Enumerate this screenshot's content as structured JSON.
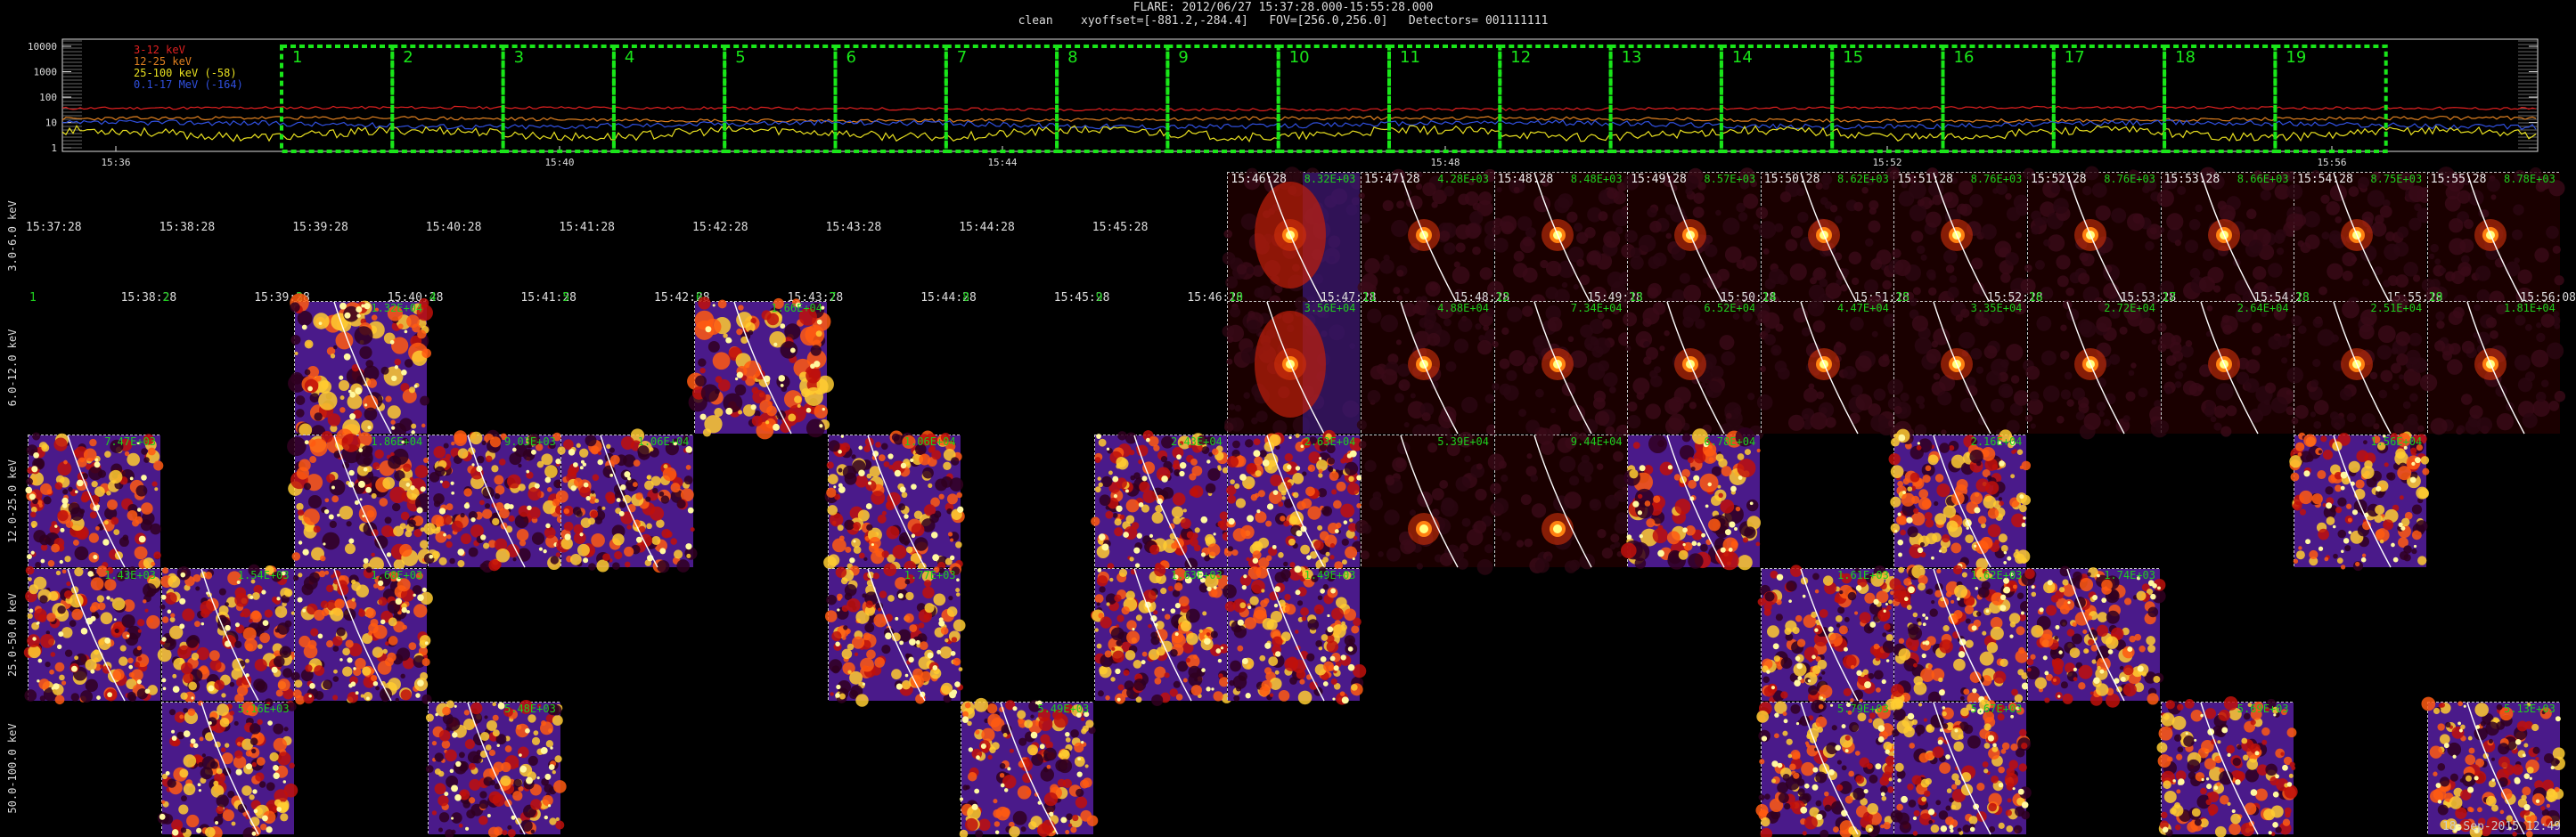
{
  "header": {
    "line1": "FLARE: 2012/06/27 15:37:28.000-15:55:28.000",
    "line2": "clean    xyoffset=[-881.2,-284.4]   FOV=[256.0,256.0]   Detectors= 001111111"
  },
  "lightcurve": {
    "ylabels": [
      "10000",
      "1000",
      "100",
      "10",
      "1"
    ],
    "xlabels": [
      "15:36",
      "15:40",
      "15:44",
      "15:48",
      "15:52",
      "15:56"
    ],
    "interval_numbers": [
      "1",
      "2",
      "3",
      "4",
      "5",
      "6",
      "7",
      "8",
      "9",
      "10",
      "11",
      "12",
      "13",
      "14",
      "15",
      "16",
      "17",
      "18",
      "19"
    ],
    "legend": [
      {
        "label": "3-12 keV",
        "color": "#e02020"
      },
      {
        "label": "12-25 keV",
        "color": "#e08020"
      },
      {
        "label": "25-100 keV (-58)",
        "color": "#e8e020"
      },
      {
        "label": "0.1-17 MeV (-164)",
        "color": "#3050e0"
      }
    ],
    "box_color": "#19e619"
  },
  "grid": {
    "bands": [
      "3.0-6.0 keV",
      "6.0-12.0 keV",
      "12.0-25.0 keV",
      "25.0-50.0 keV",
      "50.0-100.0 keV"
    ],
    "times": [
      "15:37:28",
      "15:38:28",
      "15:39:28",
      "15:40:28",
      "15:41:28",
      "15:42:28",
      "15:43:28",
      "15:44:28",
      "15:45:28",
      "15:46:28",
      "15:47:28",
      "15:48:28",
      "15:49:28",
      "15:50:28",
      "15:51:28",
      "15:52:28",
      "15:53:28",
      "15:54:28",
      "15:55:28",
      "15:56:08"
    ],
    "rows": [
      {
        "label_times": [
          "15:37:28",
          "15:38:28",
          "15:39:28",
          "15:40:28",
          "15:41:28",
          "15:42:28",
          "15:43:28",
          "15:44:28",
          "15:45:28"
        ],
        "label_nums": [],
        "cells": [
          {
            "col": 9,
            "peak": "8.32E+03",
            "time": "15:46:28",
            "kind": "flare_wide"
          },
          {
            "col": 10,
            "peak": "4.28E+03",
            "time": "15:47:28",
            "kind": "flare"
          },
          {
            "col": 11,
            "peak": "8.48E+03",
            "time": "15:48:28",
            "kind": "flare"
          },
          {
            "col": 12,
            "peak": "8.57E+03",
            "time": "15:49:28",
            "kind": "flare"
          },
          {
            "col": 13,
            "peak": "8.62E+03",
            "time": "15:50:28",
            "kind": "flare"
          },
          {
            "col": 14,
            "peak": "8.76E+03",
            "time": "15:51:28",
            "kind": "flare"
          },
          {
            "col": 15,
            "peak": "8.76E+03",
            "time": "15:52:28",
            "kind": "flare"
          },
          {
            "col": 16,
            "peak": "8.66E+03",
            "time": "15:53:28",
            "kind": "flare"
          },
          {
            "col": 17,
            "peak": "8.75E+03",
            "time": "15:54:28",
            "kind": "flare"
          },
          {
            "col": 18,
            "peak": "8.78E+03",
            "time": "15:55:28",
            "kind": "flare"
          }
        ]
      },
      {
        "label_times": [
          "15:38:28",
          "15:39:28",
          "15:40:28",
          "15:41:28",
          "15:42:28",
          "15:43:28",
          "15:44:28",
          "15:45:28",
          "15:46:28",
          "15:47:28",
          "15:48:28",
          "15:49:28",
          "15:50:28",
          "15:51:28",
          "15:52:28",
          "15:53:28",
          "15:54:28",
          "15:55:28",
          "15:56:08"
        ],
        "label_nums": [
          "1",
          "2",
          "3",
          "4",
          "5",
          "6",
          "7",
          "8",
          "9",
          "10",
          "11",
          "12",
          "13",
          "14",
          "15",
          "16",
          "17",
          "18",
          "19"
        ],
        "cells": [
          {
            "col": 2,
            "peak": "1.32E+04",
            "kind": "noise_hot"
          },
          {
            "col": 5,
            "peak": "1.66E+04",
            "kind": "noise_hot"
          },
          {
            "col": 9,
            "peak": "3.56E+04",
            "kind": "flare_wide"
          },
          {
            "col": 10,
            "peak": "4.88E+04",
            "kind": "flare"
          },
          {
            "col": 11,
            "peak": "7.34E+04",
            "kind": "flare"
          },
          {
            "col": 12,
            "peak": "6.52E+04",
            "kind": "flare"
          },
          {
            "col": 13,
            "peak": "4.47E+04",
            "kind": "flare"
          },
          {
            "col": 14,
            "peak": "3.35E+04",
            "kind": "flare"
          },
          {
            "col": 15,
            "peak": "2.72E+04",
            "kind": "flare"
          },
          {
            "col": 16,
            "peak": "2.64E+04",
            "kind": "flare"
          },
          {
            "col": 17,
            "peak": "2.51E+04",
            "kind": "flare"
          },
          {
            "col": 18,
            "peak": "1.81E+04",
            "kind": "flare"
          }
        ]
      },
      {
        "label_times": [],
        "label_nums": [],
        "cells": [
          {
            "col": 0,
            "peak": "7.47E+03",
            "kind": "noise"
          },
          {
            "col": 2,
            "peak": "1.86E+04",
            "kind": "noise_hot"
          },
          {
            "col": 3,
            "peak": "9.03E+03",
            "kind": "noise"
          },
          {
            "col": 4,
            "peak": "1.06E+04",
            "kind": "noise"
          },
          {
            "col": 6,
            "peak": "1.06E+04",
            "kind": "noise"
          },
          {
            "col": 8,
            "peak": "2.43E+04",
            "kind": "noise"
          },
          {
            "col": 9,
            "peak": "2.63E+04",
            "kind": "noise"
          },
          {
            "col": 10,
            "peak": "5.39E+04",
            "kind": "flare_dim"
          },
          {
            "col": 11,
            "peak": "9.44E+04",
            "kind": "flare_dim"
          },
          {
            "col": 12,
            "peak": "6.78E+04",
            "kind": "noise_hot"
          },
          {
            "col": 14,
            "peak": "2.16E+04",
            "kind": "noise"
          },
          {
            "col": 17,
            "peak": "1.56E+04",
            "kind": "noise"
          }
        ]
      },
      {
        "label_times": [],
        "label_nums": [],
        "cells": [
          {
            "col": 0,
            "peak": "1.43E+03",
            "kind": "noise"
          },
          {
            "col": 1,
            "peak": "1.54E+03",
            "kind": "noise"
          },
          {
            "col": 2,
            "peak": "1.68E+03",
            "kind": "noise"
          },
          {
            "col": 6,
            "peak": "1.77E+03",
            "kind": "noise"
          },
          {
            "col": 8,
            "peak": "1.63E+03",
            "kind": "noise"
          },
          {
            "col": 9,
            "peak": "1.49E+03",
            "kind": "noise"
          },
          {
            "col": 13,
            "peak": "1.61E+03",
            "kind": "noise"
          },
          {
            "col": 14,
            "peak": "1.62E+03",
            "kind": "noise"
          },
          {
            "col": 15,
            "peak": "1.74E+03",
            "kind": "noise"
          }
        ]
      },
      {
        "label_times": [],
        "label_nums": [],
        "cells": [
          {
            "col": 1,
            "peak": "5.16E+03",
            "kind": "noise"
          },
          {
            "col": 3,
            "peak": "5.48E+03",
            "kind": "noise"
          },
          {
            "col": 7,
            "peak": "5.49E+03",
            "kind": "noise"
          },
          {
            "col": 13,
            "peak": "5.79E+03",
            "kind": "noise"
          },
          {
            "col": 14,
            "peak": "5.67E+03",
            "kind": "noise"
          },
          {
            "col": 16,
            "peak": "5.69E+03",
            "kind": "noise"
          },
          {
            "col": 18,
            "peak": "5.13E+03",
            "kind": "noise"
          }
        ]
      }
    ]
  },
  "stamp": "18-Sep-2015 12:49",
  "colors": {
    "text": "#dddddd",
    "peak": "#1ecf1e",
    "limb": "#ffffff"
  }
}
